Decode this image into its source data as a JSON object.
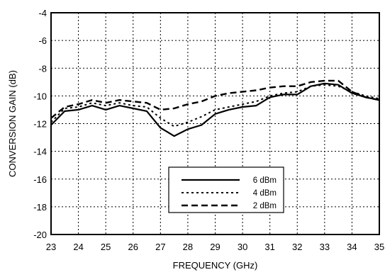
{
  "chart_data": {
    "type": "line",
    "title": "",
    "xlabel": "FREQUENCY (GHz)",
    "ylabel": "CONVERSION GAIN (dB)",
    "xlim": [
      23,
      35
    ],
    "ylim": [
      -20,
      -4
    ],
    "xticks": [
      23,
      24,
      25,
      26,
      27,
      28,
      29,
      30,
      31,
      32,
      33,
      34,
      35
    ],
    "yticks": [
      -20,
      -18,
      -16,
      -14,
      -12,
      -10,
      -8,
      -6,
      -4
    ],
    "grid": true,
    "legend_position": "bottom-center",
    "series": [
      {
        "name": "6 dBm",
        "style": "solid",
        "x": [
          23,
          23.5,
          24,
          24.5,
          25,
          25.5,
          26,
          26.5,
          27,
          27.25,
          27.5,
          28,
          28.5,
          29,
          29.5,
          30,
          30.5,
          31,
          31.5,
          32,
          32.5,
          33,
          33.5,
          34,
          34.5,
          35
        ],
        "y": [
          -12.1,
          -11.1,
          -11.0,
          -10.7,
          -11.0,
          -10.7,
          -10.9,
          -11.1,
          -12.3,
          -12.6,
          -12.9,
          -12.4,
          -12.1,
          -11.3,
          -11.0,
          -10.8,
          -10.7,
          -10.1,
          -9.9,
          -9.9,
          -9.3,
          -9.1,
          -9.2,
          -9.8,
          -10.1,
          -10.3
        ]
      },
      {
        "name": "4 dBm",
        "style": "dotted",
        "x": [
          23,
          23.5,
          24,
          24.5,
          25,
          25.5,
          26,
          26.5,
          27,
          27.5,
          28,
          28.5,
          29,
          29.5,
          30,
          30.5,
          31,
          31.5,
          32,
          32.5,
          33,
          33.5,
          34,
          34.5,
          35
        ],
        "y": [
          -11.9,
          -10.9,
          -10.8,
          -10.5,
          -10.7,
          -10.5,
          -10.7,
          -10.8,
          -11.6,
          -12.2,
          -11.9,
          -11.5,
          -11.0,
          -10.8,
          -10.6,
          -10.4,
          -10.0,
          -9.8,
          -9.7,
          -9.3,
          -9.2,
          -9.3,
          -9.7,
          -10.0,
          -10.2
        ]
      },
      {
        "name": "2 dBm",
        "style": "dashed",
        "x": [
          23,
          23.5,
          24,
          24.5,
          25,
          25.5,
          26,
          26.5,
          27,
          27.5,
          28,
          28.5,
          29,
          29.5,
          30,
          30.5,
          31,
          31.5,
          32,
          32.5,
          33,
          33.5,
          34,
          34.5,
          35
        ],
        "y": [
          -11.6,
          -10.8,
          -10.6,
          -10.3,
          -10.5,
          -10.3,
          -10.4,
          -10.5,
          -11.0,
          -10.9,
          -10.6,
          -10.4,
          -10.0,
          -9.8,
          -9.7,
          -9.6,
          -9.4,
          -9.3,
          -9.3,
          -9.0,
          -8.9,
          -8.9,
          -9.7,
          -10.1,
          -10.3
        ]
      }
    ]
  }
}
